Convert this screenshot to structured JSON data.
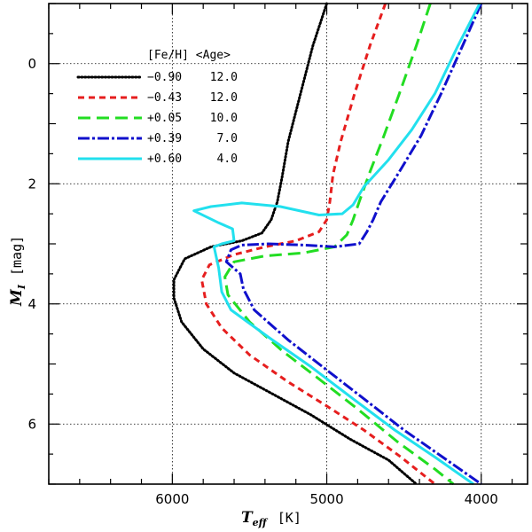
{
  "chart_data": {
    "type": "line",
    "title": "",
    "xlabel": "T",
    "xlabel_sub": "eff",
    "xlabel_unit": "[K]",
    "ylabel": "M",
    "ylabel_sub": "I",
    "ylabel_unit": "[mag]",
    "xlim": [
      6800,
      3700
    ],
    "ylim": [
      7.0,
      -1.0
    ],
    "x_ticks": [
      6000,
      5000,
      4000
    ],
    "x_tick_labels": [
      "6000",
      "5000",
      "4000"
    ],
    "y_ticks": [
      0,
      2,
      4,
      6
    ],
    "y_tick_labels": [
      "0",
      "2",
      "4",
      "6"
    ],
    "grid": true,
    "legend_position": "top-left",
    "legend_header": "[Fe/H] <Age>",
    "series": [
      {
        "name": "-0.90 12.0",
        "feh": "−0.90",
        "age": "12.0",
        "color": "#000000",
        "dash": "dotted",
        "points": [
          [
            5000,
            -1.0
          ],
          [
            5090,
            -0.3
          ],
          [
            5180,
            0.6
          ],
          [
            5250,
            1.3
          ],
          [
            5290,
            1.9
          ],
          [
            5320,
            2.3
          ],
          [
            5360,
            2.6
          ],
          [
            5420,
            2.82
          ],
          [
            5550,
            2.95
          ],
          [
            5750,
            3.05
          ],
          [
            5920,
            3.25
          ],
          [
            5990,
            3.6
          ],
          [
            5990,
            3.9
          ],
          [
            5940,
            4.3
          ],
          [
            5800,
            4.75
          ],
          [
            5600,
            5.15
          ],
          [
            5350,
            5.5
          ],
          [
            5100,
            5.85
          ],
          [
            4850,
            6.25
          ],
          [
            4600,
            6.6
          ],
          [
            4420,
            7.0
          ]
        ]
      },
      {
        "name": "-0.43 12.0",
        "feh": "−0.43",
        "age": "12.0",
        "color": "#e61e1e",
        "dash": "dashed",
        "points": [
          [
            4620,
            -1.0
          ],
          [
            4720,
            -0.3
          ],
          [
            4820,
            0.5
          ],
          [
            4910,
            1.3
          ],
          [
            4960,
            1.85
          ],
          [
            4980,
            2.3
          ],
          [
            5000,
            2.6
          ],
          [
            5050,
            2.8
          ],
          [
            5200,
            2.95
          ],
          [
            5400,
            3.05
          ],
          [
            5600,
            3.18
          ],
          [
            5760,
            3.35
          ],
          [
            5810,
            3.6
          ],
          [
            5780,
            4.0
          ],
          [
            5680,
            4.4
          ],
          [
            5500,
            4.85
          ],
          [
            5250,
            5.3
          ],
          [
            5000,
            5.7
          ],
          [
            4760,
            6.1
          ],
          [
            4520,
            6.55
          ],
          [
            4300,
            7.0
          ]
        ]
      },
      {
        "name": "+0.05 10.0",
        "feh": "+0.05",
        "age": "10.0",
        "color": "#22dd22",
        "dash": "longdash",
        "points": [
          [
            4330,
            -1.0
          ],
          [
            4420,
            -0.3
          ],
          [
            4530,
            0.5
          ],
          [
            4630,
            1.2
          ],
          [
            4720,
            1.8
          ],
          [
            4790,
            2.3
          ],
          [
            4830,
            2.6
          ],
          [
            4870,
            2.85
          ],
          [
            4950,
            3.05
          ],
          [
            5150,
            3.15
          ],
          [
            5400,
            3.2
          ],
          [
            5600,
            3.3
          ],
          [
            5660,
            3.55
          ],
          [
            5640,
            3.85
          ],
          [
            5500,
            4.3
          ],
          [
            5280,
            4.8
          ],
          [
            5050,
            5.25
          ],
          [
            4800,
            5.75
          ],
          [
            4540,
            6.3
          ],
          [
            4300,
            6.75
          ],
          [
            4180,
            7.0
          ]
        ]
      },
      {
        "name": "+0.39 7.0",
        "feh": "+0.39",
        "age": "7.0",
        "color": "#1010cc",
        "dash": "dashdot",
        "points": [
          [
            4000,
            -1.0
          ],
          [
            4120,
            -0.3
          ],
          [
            4260,
            0.5
          ],
          [
            4390,
            1.2
          ],
          [
            4530,
            1.8
          ],
          [
            4650,
            2.3
          ],
          [
            4700,
            2.6
          ],
          [
            4740,
            2.8
          ],
          [
            4790,
            3.0
          ],
          [
            4950,
            3.05
          ],
          [
            5150,
            3.02
          ],
          [
            5380,
            3.0
          ],
          [
            5550,
            3.02
          ],
          [
            5620,
            3.1
          ],
          [
            5650,
            3.3
          ],
          [
            5560,
            3.5
          ],
          [
            5540,
            3.75
          ],
          [
            5470,
            4.1
          ],
          [
            5250,
            4.6
          ],
          [
            5000,
            5.1
          ],
          [
            4750,
            5.6
          ],
          [
            4500,
            6.1
          ],
          [
            4250,
            6.55
          ],
          [
            4000,
            7.0
          ]
        ]
      },
      {
        "name": "+0.60 4.0",
        "feh": "+0.60",
        "age": "4.0",
        "color": "#22e0ee",
        "dash": "solid",
        "points": [
          [
            4010,
            -1.0
          ],
          [
            4150,
            -0.3
          ],
          [
            4300,
            0.5
          ],
          [
            4450,
            1.1
          ],
          [
            4600,
            1.6
          ],
          [
            4760,
            2.05
          ],
          [
            4830,
            2.35
          ],
          [
            4900,
            2.5
          ],
          [
            5050,
            2.52
          ],
          [
            5300,
            2.38
          ],
          [
            5550,
            2.32
          ],
          [
            5750,
            2.38
          ],
          [
            5860,
            2.45
          ],
          [
            5700,
            2.65
          ],
          [
            5610,
            2.75
          ],
          [
            5600,
            2.95
          ],
          [
            5680,
            3.0
          ],
          [
            5730,
            3.05
          ],
          [
            5700,
            3.4
          ],
          [
            5680,
            3.8
          ],
          [
            5620,
            4.1
          ],
          [
            5380,
            4.55
          ],
          [
            5100,
            5.05
          ],
          [
            4820,
            5.6
          ],
          [
            4560,
            6.1
          ],
          [
            4300,
            6.55
          ],
          [
            4050,
            7.0
          ]
        ]
      }
    ]
  }
}
